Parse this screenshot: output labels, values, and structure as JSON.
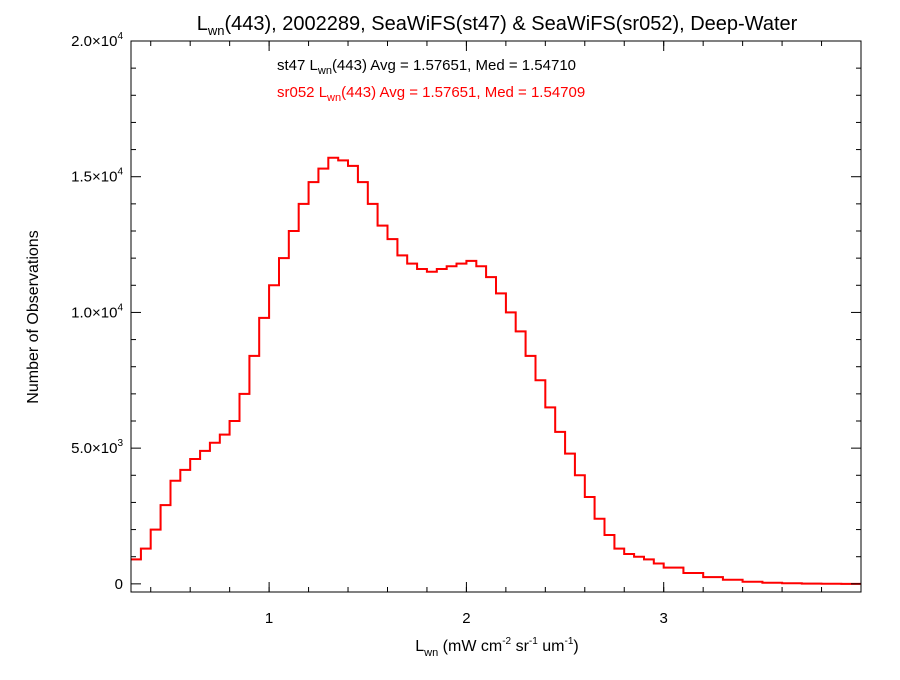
{
  "chart_data": {
    "type": "line",
    "step": true,
    "title_parts": {
      "pre": "L",
      "sub": "wn",
      "post": "(443), 2002289, SeaWiFS(st47) & SeaWiFS(sr052), Deep-Water"
    },
    "xlabel_parts": [
      {
        "t": "L"
      },
      {
        "t": "wn",
        "sub": true
      },
      {
        "t": " (mW cm"
      },
      {
        "t": "-2",
        "sup": true
      },
      {
        "t": " sr"
      },
      {
        "t": "-1",
        "sup": true
      },
      {
        "t": " um"
      },
      {
        "t": "-1",
        "sup": true
      },
      {
        "t": ")"
      }
    ],
    "ylabel": "Number of Observations",
    "xlim": [
      0.3,
      4.0
    ],
    "ylim": [
      -300,
      20000
    ],
    "xticks": [
      {
        "value": 1,
        "label": "1"
      },
      {
        "value": 2,
        "label": "2"
      },
      {
        "value": 3,
        "label": "3"
      }
    ],
    "yticks": [
      {
        "value": 0,
        "label": "0",
        "exp": ""
      },
      {
        "value": 5000,
        "label": "5.0×10",
        "exp": "3"
      },
      {
        "value": 10000,
        "label": "1.0×10",
        "exp": "4"
      },
      {
        "value": 15000,
        "label": "1.5×10",
        "exp": "4"
      },
      {
        "value": 20000,
        "label": "2.0×10",
        "exp": "4"
      }
    ],
    "annotations": [
      {
        "color": "#000000",
        "pre": "st47 L",
        "sub": "wn",
        "post": "(443) Avg = 1.57651, Med = 1.54710"
      },
      {
        "color": "#ff0000",
        "pre": "sr052 L",
        "sub": "wn",
        "post": "(443) Avg = 1.57651, Med = 1.54709"
      }
    ],
    "series": [
      {
        "name": "st47",
        "color": "#000000",
        "x": [
          0.3,
          0.35,
          0.4,
          0.45,
          0.5,
          0.55,
          0.6,
          0.65,
          0.7,
          0.75,
          0.8,
          0.85,
          0.9,
          0.95,
          1.0,
          1.05,
          1.1,
          1.15,
          1.2,
          1.25,
          1.3,
          1.35,
          1.4,
          1.45,
          1.5,
          1.55,
          1.6,
          1.65,
          1.7,
          1.75,
          1.8,
          1.85,
          1.9,
          1.95,
          2.0,
          2.05,
          2.1,
          2.15,
          2.2,
          2.25,
          2.3,
          2.35,
          2.4,
          2.45,
          2.5,
          2.55,
          2.6,
          2.65,
          2.7,
          2.75,
          2.8,
          2.85,
          2.9,
          2.95,
          3.0,
          3.1,
          3.2,
          3.3,
          3.4,
          3.5,
          3.6,
          3.7,
          3.8,
          3.9,
          4.0
        ],
        "y": [
          900,
          1300,
          2000,
          2900,
          3800,
          4200,
          4600,
          4900,
          5200,
          5500,
          6000,
          7000,
          8400,
          9800,
          11000,
          12000,
          13000,
          14000,
          14800,
          15300,
          15700,
          15600,
          15400,
          14800,
          14000,
          13200,
          12700,
          12100,
          11800,
          11600,
          11500,
          11600,
          11700,
          11800,
          11900,
          11700,
          11300,
          10700,
          10000,
          9300,
          8400,
          7500,
          6500,
          5600,
          4800,
          4000,
          3200,
          2400,
          1800,
          1300,
          1100,
          1000,
          900,
          750,
          600,
          400,
          250,
          150,
          80,
          40,
          20,
          10,
          5,
          0,
          0
        ]
      },
      {
        "name": "sr052",
        "color": "#ff0000",
        "x": [
          0.3,
          0.35,
          0.4,
          0.45,
          0.5,
          0.55,
          0.6,
          0.65,
          0.7,
          0.75,
          0.8,
          0.85,
          0.9,
          0.95,
          1.0,
          1.05,
          1.1,
          1.15,
          1.2,
          1.25,
          1.3,
          1.35,
          1.4,
          1.45,
          1.5,
          1.55,
          1.6,
          1.65,
          1.7,
          1.75,
          1.8,
          1.85,
          1.9,
          1.95,
          2.0,
          2.05,
          2.1,
          2.15,
          2.2,
          2.25,
          2.3,
          2.35,
          2.4,
          2.45,
          2.5,
          2.55,
          2.6,
          2.65,
          2.7,
          2.75,
          2.8,
          2.85,
          2.9,
          2.95,
          3.0,
          3.1,
          3.2,
          3.3,
          3.4,
          3.5,
          3.6,
          3.7,
          3.8,
          3.9,
          4.0
        ],
        "y": [
          900,
          1300,
          2000,
          2900,
          3800,
          4200,
          4600,
          4900,
          5200,
          5500,
          6000,
          7000,
          8400,
          9800,
          11000,
          12000,
          13000,
          14000,
          14800,
          15300,
          15700,
          15600,
          15400,
          14800,
          14000,
          13200,
          12700,
          12100,
          11800,
          11600,
          11500,
          11600,
          11700,
          11800,
          11900,
          11700,
          11300,
          10700,
          10000,
          9300,
          8400,
          7500,
          6500,
          5600,
          4800,
          4000,
          3200,
          2400,
          1800,
          1300,
          1100,
          1000,
          900,
          750,
          600,
          400,
          250,
          150,
          80,
          40,
          20,
          10,
          5,
          0,
          0
        ]
      }
    ],
    "grid": false,
    "legend": "none"
  }
}
